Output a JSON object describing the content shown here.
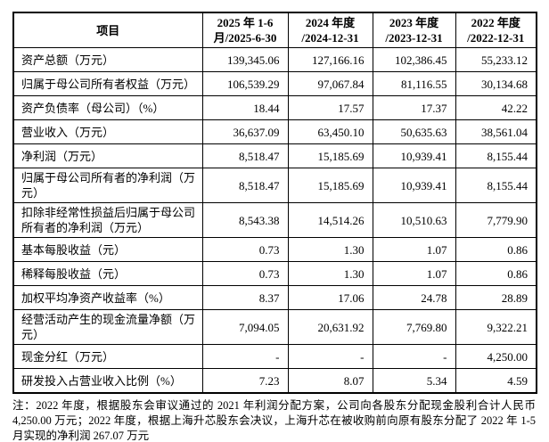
{
  "table": {
    "header": {
      "item_label": "项目",
      "periods": [
        {
          "line1": "2025 年 1-6",
          "line2": "月/2025-6-30"
        },
        {
          "line1": "2024 年度",
          "line2": "/2024-12-31"
        },
        {
          "line1": "2023 年度",
          "line2": "/2023-12-31"
        },
        {
          "line1": "2022 年度",
          "line2": "/2022-12-31"
        }
      ]
    },
    "rows": [
      {
        "label": "资产总额（万元）",
        "values": [
          "139,345.06",
          "127,166.16",
          "102,386.45",
          "55,233.12"
        ]
      },
      {
        "label": "归属于母公司所有者权益（万元）",
        "values": [
          "106,539.29",
          "97,067.84",
          "81,116.55",
          "30,134.68"
        ]
      },
      {
        "label": "资产负债率（母公司）（%）",
        "values": [
          "18.44",
          "17.57",
          "17.37",
          "42.22"
        ]
      },
      {
        "label": "营业收入（万元）",
        "values": [
          "36,637.09",
          "63,450.10",
          "50,635.63",
          "38,561.04"
        ]
      },
      {
        "label": "净利润（万元）",
        "values": [
          "8,518.47",
          "15,185.69",
          "10,939.41",
          "8,155.44"
        ]
      },
      {
        "label": "归属于母公司所有者的净利润（万元）",
        "values": [
          "8,518.47",
          "15,185.69",
          "10,939.41",
          "8,155.44"
        ]
      },
      {
        "label": "扣除非经常性损益后归属于母公司所有者的净利润（万元）",
        "values": [
          "8,543.38",
          "14,514.26",
          "10,510.63",
          "7,779.90"
        ]
      },
      {
        "label": "基本每股收益（元）",
        "values": [
          "0.73",
          "1.30",
          "1.07",
          "0.86"
        ]
      },
      {
        "label": "稀释每股收益（元）",
        "values": [
          "0.73",
          "1.30",
          "1.07",
          "0.86"
        ]
      },
      {
        "label": "加权平均净资产收益率（%）",
        "values": [
          "8.37",
          "17.06",
          "24.78",
          "28.89"
        ]
      },
      {
        "label": "经营活动产生的现金流量净额（万元）",
        "values": [
          "7,094.05",
          "20,631.92",
          "7,769.80",
          "9,322.21"
        ]
      },
      {
        "label": "现金分红（万元）",
        "values": [
          "-",
          "-",
          "-",
          "4,250.00"
        ]
      },
      {
        "label": "研发投入占营业收入比例（%）",
        "values": [
          "7.23",
          "8.07",
          "5.34",
          "4.59"
        ]
      }
    ]
  },
  "note": "注：2022 年度，根据股东会审议通过的 2021 年利润分配方案，公司向各股东分配现金股利合计人民币 4,250.00 万元；2022 年度，根据上海升芯股东会决议，上海升芯在被收购前向原有股东分配了 2022 年 1-5 月实现的净利润 267.07 万元"
}
